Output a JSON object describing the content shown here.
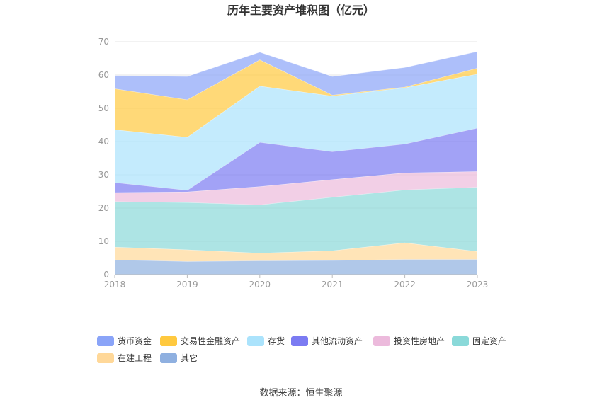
{
  "chart_data": {
    "type": "area",
    "stacked": true,
    "title": "历年主要资产堆积图（亿元）",
    "source": "数据来源：恒生聚源",
    "x": [
      "2018",
      "2019",
      "2020",
      "2021",
      "2022",
      "2023"
    ],
    "ylim": [
      0,
      70
    ],
    "yticks": [
      0,
      10,
      20,
      30,
      40,
      50,
      60,
      70
    ],
    "grid": true,
    "legend_position": "bottom",
    "series": [
      {
        "name": "其它",
        "color": "#8fb0e0",
        "values": [
          4.5,
          4.0,
          4.2,
          4.3,
          4.6,
          4.6
        ]
      },
      {
        "name": "在建工程",
        "color": "#ffd899",
        "values": [
          3.8,
          3.5,
          2.3,
          2.9,
          5.0,
          2.4
        ]
      },
      {
        "name": "固定资产",
        "color": "#8ad9d9",
        "values": [
          13.7,
          14.2,
          14.5,
          16.1,
          15.9,
          19.3
        ]
      },
      {
        "name": "投资性房地产",
        "color": "#ecbadc",
        "values": [
          2.7,
          3.2,
          5.5,
          5.3,
          5.1,
          4.7
        ]
      },
      {
        "name": "其他流动资产",
        "color": "#7b7bf2",
        "values": [
          3.0,
          0.5,
          13.3,
          8.4,
          8.7,
          13.1
        ]
      },
      {
        "name": "存货",
        "color": "#abe3fc",
        "values": [
          15.9,
          15.9,
          16.9,
          16.7,
          16.9,
          16.2
        ]
      },
      {
        "name": "交易性金融资产",
        "color": "#ffc93f",
        "values": [
          12.3,
          11.3,
          7.9,
          0.3,
          0.2,
          1.8
        ]
      },
      {
        "name": "货币资金",
        "color": "#8aa4f8",
        "values": [
          4.0,
          7.0,
          2.3,
          5.6,
          5.9,
          5.0
        ]
      }
    ],
    "legend_order": [
      "货币资金",
      "交易性金融资产",
      "存货",
      "其他流动资产",
      "投资性房地产",
      "固定资产",
      "在建工程",
      "其它"
    ]
  }
}
